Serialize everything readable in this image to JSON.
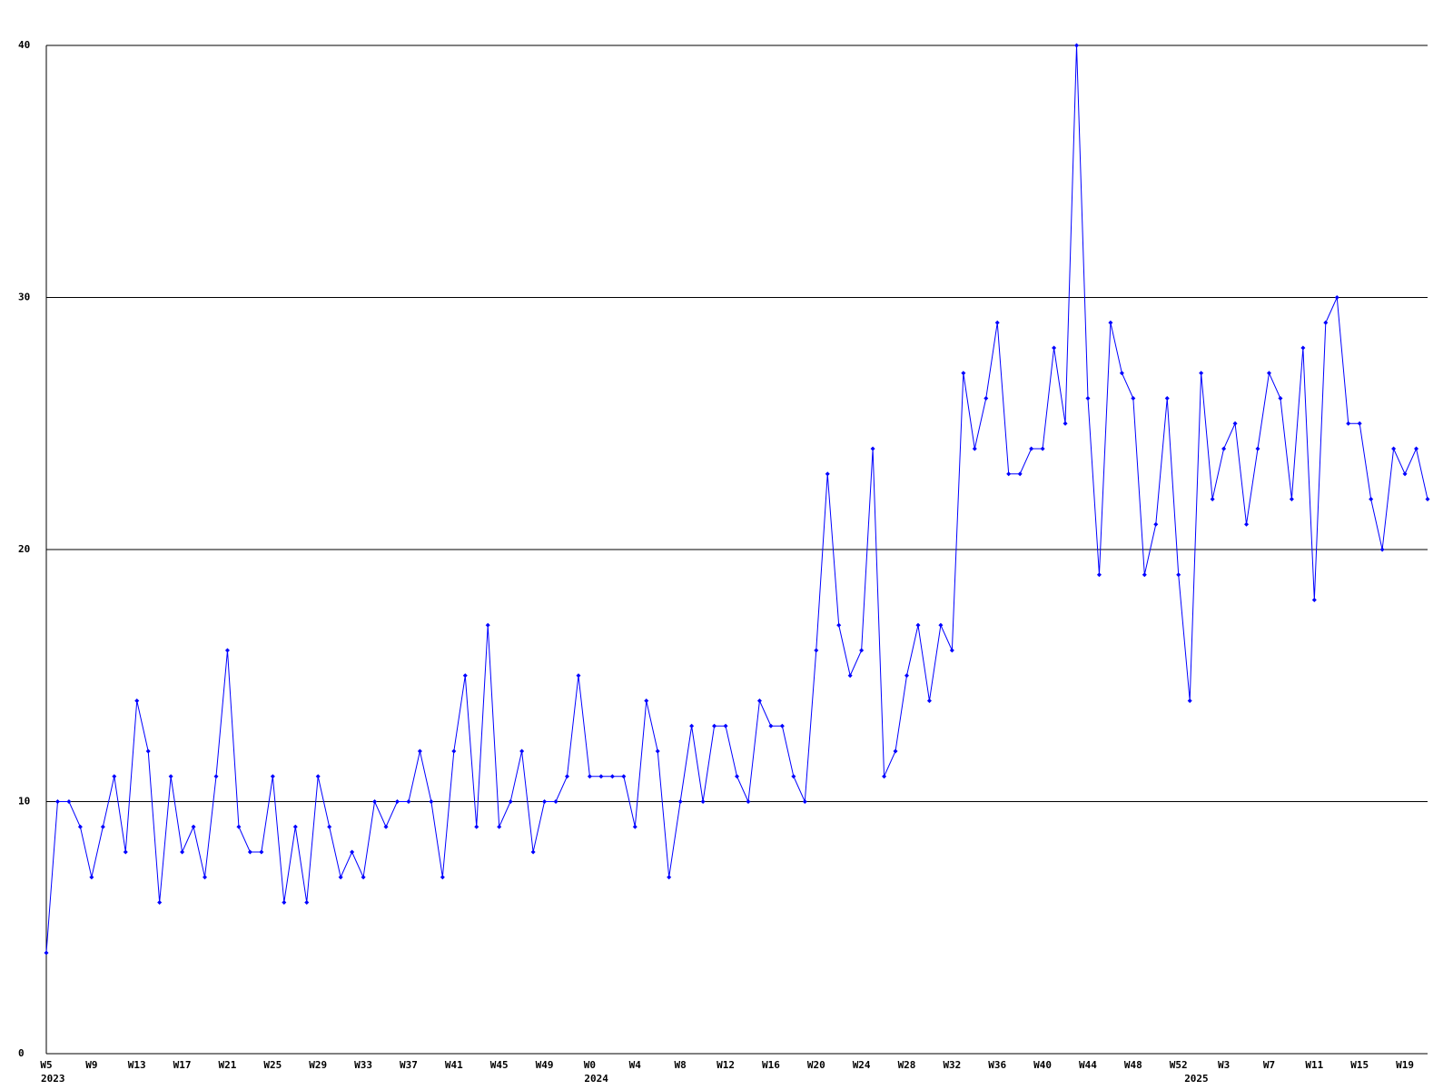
{
  "chart_data": {
    "type": "line",
    "categories": [
      "W5",
      null,
      null,
      null,
      "W9",
      null,
      null,
      null,
      "W13",
      null,
      null,
      null,
      "W17",
      null,
      null,
      null,
      "W21",
      null,
      null,
      null,
      "W25",
      null,
      null,
      null,
      "W29",
      null,
      null,
      null,
      "W33",
      null,
      null,
      null,
      "W37",
      null,
      null,
      null,
      "W41",
      null,
      null,
      null,
      "W45",
      null,
      null,
      null,
      "W49",
      null,
      null,
      null,
      "W0",
      null,
      null,
      null,
      "W4",
      null,
      null,
      null,
      "W8",
      null,
      null,
      null,
      "W12",
      null,
      null,
      null,
      "W16",
      null,
      null,
      null,
      "W20",
      null,
      null,
      null,
      "W24",
      null,
      null,
      null,
      "W28",
      null,
      null,
      null,
      "W32",
      null,
      null,
      null,
      "W36",
      null,
      null,
      null,
      "W40",
      null,
      null,
      null,
      "W44",
      null,
      null,
      null,
      "W48",
      null,
      null,
      null,
      "W52",
      null,
      null,
      null,
      "W3",
      null,
      null,
      null,
      "W7",
      null,
      null,
      null,
      "W11",
      null,
      null,
      null,
      "W15",
      null,
      null,
      null,
      "W19",
      null,
      null
    ],
    "years": [
      "2023",
      null,
      null,
      null,
      null,
      null,
      null,
      null,
      null,
      null,
      null,
      null,
      null,
      null,
      null,
      null,
      null,
      null,
      null,
      null,
      null,
      null,
      null,
      null,
      null,
      null,
      null,
      null,
      null,
      null,
      null,
      null,
      null,
      null,
      null,
      null,
      null,
      null,
      null,
      null,
      null,
      null,
      null,
      null,
      null,
      null,
      null,
      null,
      "2024",
      null,
      null,
      null,
      null,
      null,
      null,
      null,
      null,
      null,
      null,
      null,
      null,
      null,
      null,
      null,
      null,
      null,
      null,
      null,
      null,
      null,
      null,
      null,
      null,
      null,
      null,
      null,
      null,
      null,
      null,
      null,
      null,
      null,
      null,
      null,
      null,
      null,
      null,
      null,
      null,
      null,
      null,
      null,
      null,
      null,
      null,
      null,
      null,
      null,
      null,
      null,
      null,
      "2025",
      null,
      null,
      null,
      null,
      null,
      null,
      null,
      null,
      null,
      null,
      null,
      null,
      null,
      null,
      null,
      null,
      null,
      null,
      null,
      null,
      null
    ],
    "values": [
      4,
      10,
      10,
      9,
      7,
      9,
      11,
      8,
      14,
      12,
      6,
      11,
      8,
      9,
      7,
      11,
      16,
      9,
      8,
      8,
      11,
      6,
      9,
      6,
      11,
      9,
      7,
      8,
      7,
      10,
      9,
      10,
      10,
      12,
      10,
      7,
      12,
      15,
      9,
      17,
      9,
      10,
      12,
      8,
      10,
      10,
      11,
      15,
      11,
      11,
      11,
      11,
      9,
      14,
      12,
      7,
      10,
      13,
      10,
      13,
      13,
      11,
      10,
      14,
      13,
      13,
      11,
      10,
      16,
      23,
      17,
      15,
      16,
      24,
      11,
      12,
      15,
      17,
      14,
      17,
      16,
      27,
      24,
      26,
      29,
      23,
      23,
      24,
      24,
      28,
      25,
      40,
      26,
      19,
      29,
      27,
      26,
      19,
      21,
      26,
      19,
      14,
      27,
      22,
      24,
      25,
      21,
      24,
      27,
      26,
      22,
      28,
      18,
      29,
      30,
      25,
      25,
      22,
      20,
      24,
      23,
      24,
      22
    ],
    "color": "#0000ff",
    "ylim": [
      0,
      40
    ],
    "yticks": [
      0,
      10,
      20,
      30,
      40
    ],
    "grid": true
  }
}
